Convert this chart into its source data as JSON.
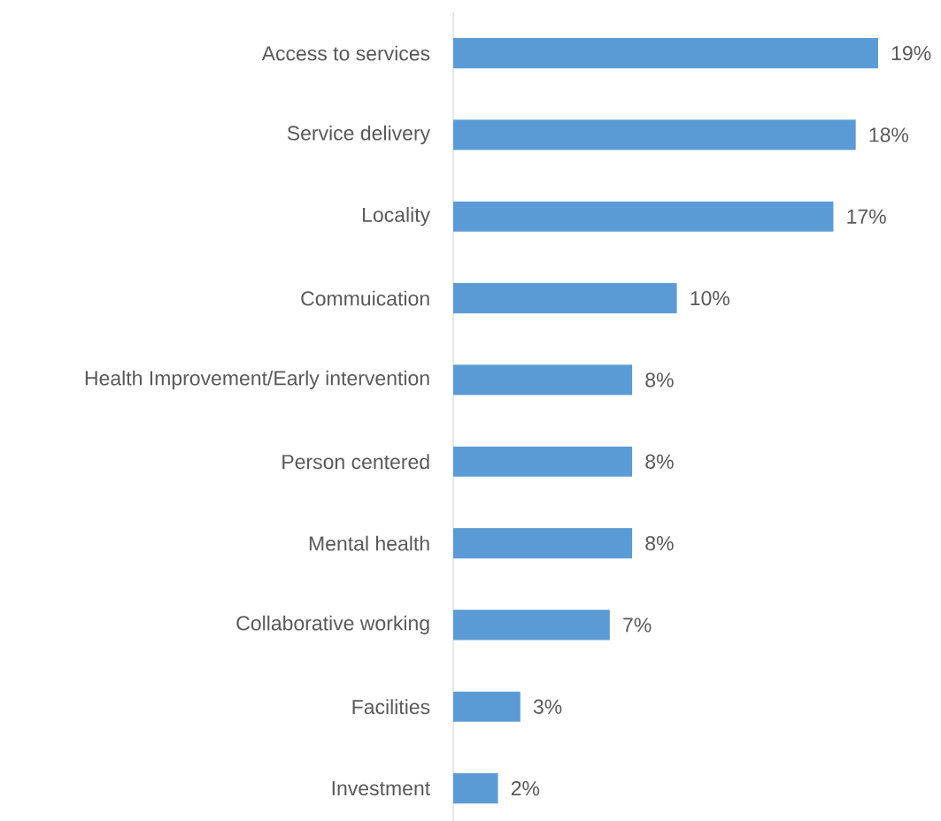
{
  "chart_data": {
    "type": "bar",
    "orientation": "horizontal",
    "categories": [
      "Access to services",
      "Service delivery",
      "Locality",
      "Commuication",
      "Health Improvement/Early intervention",
      "Person centered",
      "Mental health",
      "Collaborative working",
      "Facilities",
      "Investment"
    ],
    "values": [
      19,
      18,
      17,
      10,
      8,
      8,
      8,
      7,
      3,
      2
    ],
    "value_labels": [
      "19%",
      "18%",
      "17%",
      "10%",
      "8%",
      "8%",
      "8%",
      "7%",
      "3%",
      "2%"
    ],
    "color": "#5b9bd5"
  }
}
